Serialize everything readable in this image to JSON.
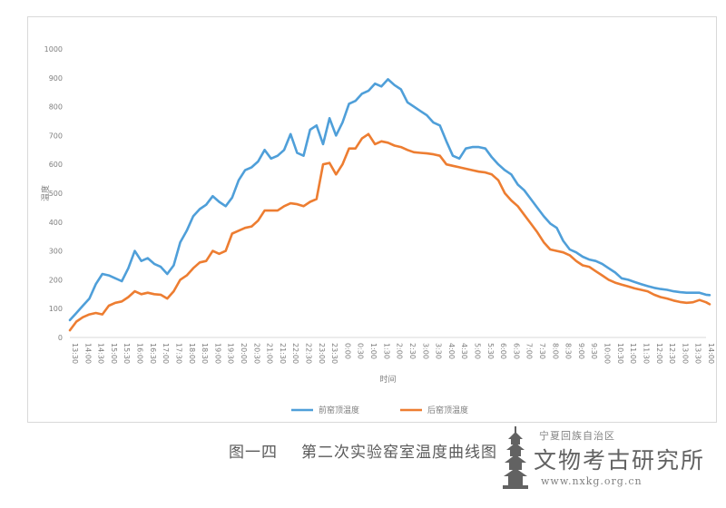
{
  "caption": {
    "figure_number": "图一四",
    "figure_title": "第二次实验窑室温度曲线图"
  },
  "watermark": {
    "line1": "宁夏回族自治区",
    "line2": "文物考古研究所",
    "url": "www.nxkg.org.cn"
  },
  "chart_data": {
    "type": "line",
    "title": "",
    "xlabel": "时间",
    "ylabel": "温度",
    "ylim": [
      0,
      1000
    ],
    "yticks": [
      0,
      100,
      200,
      300,
      400,
      500,
      600,
      700,
      800,
      900,
      1000
    ],
    "grid": false,
    "legend_position": "bottom",
    "x": [
      "13:30",
      "14:00",
      "14:30",
      "15:00",
      "15:30",
      "16:00",
      "16:30",
      "17:00",
      "17:30",
      "18:00",
      "18:30",
      "19:00",
      "19:30",
      "20:00",
      "20:30",
      "21:00",
      "21:30",
      "22:00",
      "22:30",
      "23:00",
      "23:30",
      "0:00",
      "0:30",
      "1:00",
      "1:30",
      "2:00",
      "2:30",
      "3:00",
      "3:30",
      "4:00",
      "4:30",
      "5:00",
      "5:30",
      "6:00",
      "6:30",
      "7:00",
      "7:30",
      "8:00",
      "8:30",
      "9:00",
      "9:30",
      "10:00",
      "10:30",
      "11:00",
      "11:30",
      "12:00",
      "12:30",
      "13:00",
      "13:30",
      "14:00"
    ],
    "x_min": 0,
    "x_max": 49,
    "series": [
      {
        "name": "前窑顶温度",
        "color": "#4f9fd9",
        "points": [
          [
            0,
            60
          ],
          [
            0.5,
            85
          ],
          [
            1,
            110
          ],
          [
            1.5,
            135
          ],
          [
            2,
            185
          ],
          [
            2.5,
            220
          ],
          [
            3,
            215
          ],
          [
            3.5,
            205
          ],
          [
            4,
            195
          ],
          [
            4.5,
            240
          ],
          [
            5,
            300
          ],
          [
            5.5,
            265
          ],
          [
            6,
            275
          ],
          [
            6.5,
            255
          ],
          [
            7,
            245
          ],
          [
            7.5,
            220
          ],
          [
            8,
            250
          ],
          [
            8.5,
            330
          ],
          [
            9,
            370
          ],
          [
            9.5,
            420
          ],
          [
            10,
            445
          ],
          [
            10.5,
            460
          ],
          [
            11,
            490
          ],
          [
            11.5,
            470
          ],
          [
            12,
            455
          ],
          [
            12.5,
            485
          ],
          [
            13,
            545
          ],
          [
            13.5,
            580
          ],
          [
            14,
            590
          ],
          [
            14.5,
            610
          ],
          [
            15,
            650
          ],
          [
            15.5,
            620
          ],
          [
            16,
            630
          ],
          [
            16.5,
            650
          ],
          [
            17,
            705
          ],
          [
            17.5,
            640
          ],
          [
            18,
            630
          ],
          [
            18.5,
            720
          ],
          [
            19,
            735
          ],
          [
            19.5,
            670
          ],
          [
            20,
            760
          ],
          [
            20.5,
            700
          ],
          [
            21,
            745
          ],
          [
            21.5,
            810
          ],
          [
            22,
            820
          ],
          [
            22.5,
            845
          ],
          [
            23,
            855
          ],
          [
            23.5,
            880
          ],
          [
            24,
            870
          ],
          [
            24.5,
            895
          ],
          [
            25,
            875
          ],
          [
            25.5,
            860
          ],
          [
            26,
            815
          ],
          [
            26.5,
            800
          ],
          [
            27,
            785
          ],
          [
            27.5,
            770
          ],
          [
            28,
            745
          ],
          [
            28.5,
            735
          ],
          [
            29,
            680
          ],
          [
            29.5,
            630
          ],
          [
            30,
            620
          ],
          [
            30.5,
            655
          ],
          [
            31,
            660
          ],
          [
            31.5,
            660
          ],
          [
            32,
            655
          ],
          [
            32.5,
            625
          ],
          [
            33,
            600
          ],
          [
            33.5,
            580
          ],
          [
            34,
            565
          ],
          [
            34.5,
            530
          ],
          [
            35,
            510
          ],
          [
            35.5,
            480
          ],
          [
            36,
            450
          ],
          [
            36.5,
            420
          ],
          [
            37,
            395
          ],
          [
            37.5,
            380
          ],
          [
            38,
            335
          ],
          [
            38.5,
            305
          ],
          [
            39,
            295
          ],
          [
            39.5,
            280
          ],
          [
            40,
            270
          ],
          [
            40.5,
            265
          ],
          [
            41,
            255
          ],
          [
            41.5,
            240
          ],
          [
            42,
            225
          ],
          [
            42.5,
            205
          ],
          [
            43,
            200
          ],
          [
            43.5,
            192
          ],
          [
            44,
            185
          ],
          [
            44.5,
            178
          ],
          [
            45,
            172
          ],
          [
            45.5,
            168
          ],
          [
            46,
            165
          ],
          [
            46.5,
            160
          ],
          [
            47,
            157
          ],
          [
            47.5,
            155
          ],
          [
            48,
            155
          ],
          [
            48.5,
            155
          ],
          [
            49,
            148
          ],
          [
            49.5,
            147
          ]
        ]
      },
      {
        "name": "后窑顶温度",
        "color": "#ed7d31",
        "points": [
          [
            0,
            25
          ],
          [
            0.5,
            55
          ],
          [
            1,
            70
          ],
          [
            1.5,
            80
          ],
          [
            2,
            85
          ],
          [
            2.5,
            80
          ],
          [
            3,
            110
          ],
          [
            3.5,
            120
          ],
          [
            4,
            125
          ],
          [
            4.5,
            140
          ],
          [
            5,
            160
          ],
          [
            5.5,
            150
          ],
          [
            6,
            155
          ],
          [
            6.5,
            150
          ],
          [
            7,
            148
          ],
          [
            7.5,
            135
          ],
          [
            8,
            160
          ],
          [
            8.5,
            200
          ],
          [
            9,
            215
          ],
          [
            9.5,
            240
          ],
          [
            10,
            260
          ],
          [
            10.5,
            265
          ],
          [
            11,
            300
          ],
          [
            11.5,
            290
          ],
          [
            12,
            300
          ],
          [
            12.5,
            360
          ],
          [
            13,
            370
          ],
          [
            13.5,
            380
          ],
          [
            14,
            385
          ],
          [
            14.5,
            405
          ],
          [
            15,
            440
          ],
          [
            15.5,
            440
          ],
          [
            16,
            440
          ],
          [
            16.5,
            455
          ],
          [
            17,
            465
          ],
          [
            17.5,
            462
          ],
          [
            18,
            455
          ],
          [
            18.5,
            470
          ],
          [
            19,
            480
          ],
          [
            19.5,
            600
          ],
          [
            20,
            605
          ],
          [
            20.5,
            565
          ],
          [
            21,
            600
          ],
          [
            21.5,
            655
          ],
          [
            22,
            655
          ],
          [
            22.5,
            690
          ],
          [
            23,
            705
          ],
          [
            23.5,
            670
          ],
          [
            24,
            680
          ],
          [
            24.5,
            675
          ],
          [
            25,
            665
          ],
          [
            25.5,
            660
          ],
          [
            26,
            650
          ],
          [
            26.5,
            642
          ],
          [
            27,
            640
          ],
          [
            27.5,
            638
          ],
          [
            28,
            635
          ],
          [
            28.5,
            630
          ],
          [
            29,
            600
          ],
          [
            29.5,
            595
          ],
          [
            30,
            590
          ],
          [
            30.5,
            585
          ],
          [
            31,
            580
          ],
          [
            31.5,
            575
          ],
          [
            32,
            572
          ],
          [
            32.5,
            565
          ],
          [
            33,
            545
          ],
          [
            33.5,
            500
          ],
          [
            34,
            475
          ],
          [
            34.5,
            455
          ],
          [
            35,
            425
          ],
          [
            35.5,
            395
          ],
          [
            36,
            365
          ],
          [
            36.5,
            330
          ],
          [
            37,
            305
          ],
          [
            37.5,
            300
          ],
          [
            38,
            295
          ],
          [
            38.5,
            285
          ],
          [
            39,
            265
          ],
          [
            39.5,
            250
          ],
          [
            40,
            245
          ],
          [
            40.5,
            230
          ],
          [
            41,
            215
          ],
          [
            41.5,
            200
          ],
          [
            42,
            190
          ],
          [
            42.5,
            183
          ],
          [
            43,
            177
          ],
          [
            43.5,
            170
          ],
          [
            44,
            165
          ],
          [
            44.5,
            160
          ],
          [
            45,
            148
          ],
          [
            45.5,
            140
          ],
          [
            46,
            135
          ],
          [
            46.5,
            128
          ],
          [
            47,
            123
          ],
          [
            47.5,
            120
          ],
          [
            48,
            122
          ],
          [
            48.5,
            130
          ],
          [
            49,
            122
          ],
          [
            49.5,
            115
          ]
        ]
      }
    ]
  }
}
